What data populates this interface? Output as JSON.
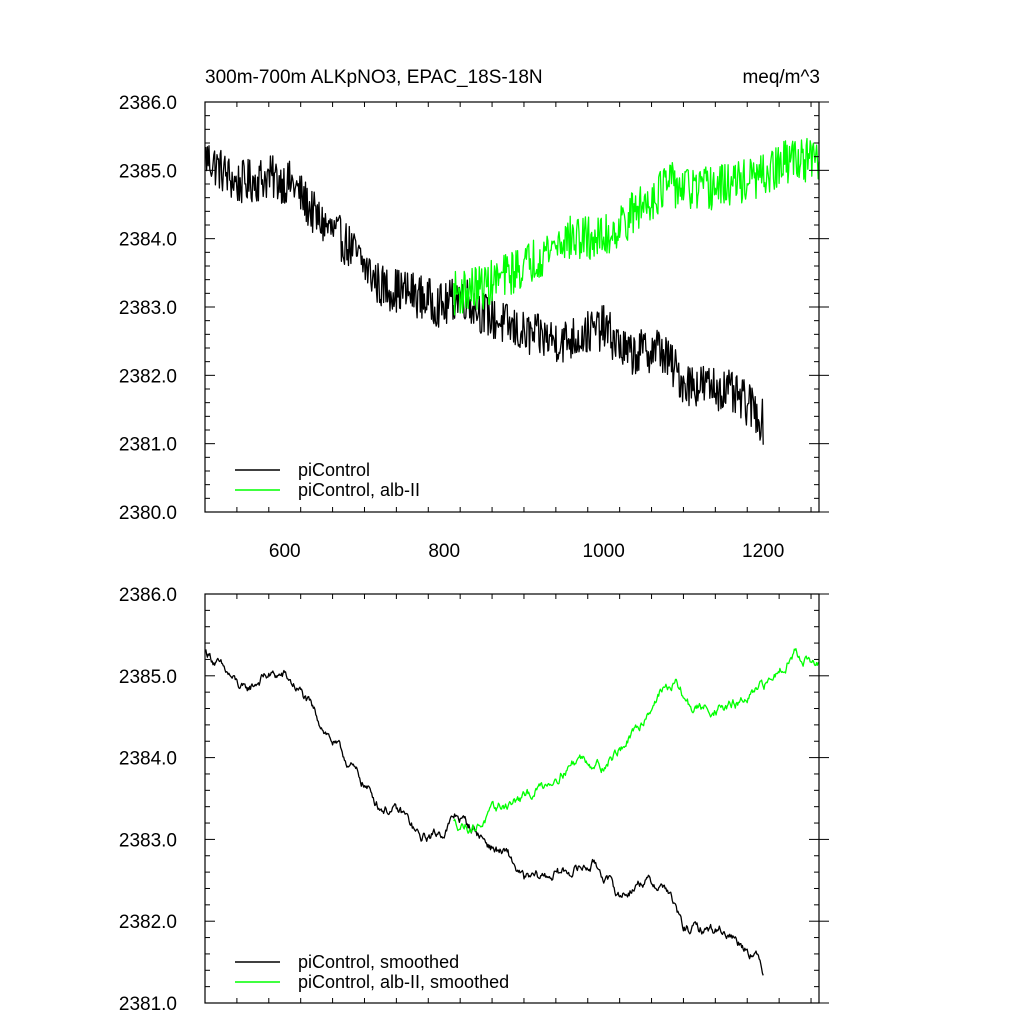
{
  "chart_data": [
    {
      "type": "line",
      "title": "300m-700m ALKpNO3, EPAC_18S-18N",
      "units": "meq/m^3",
      "xlim": [
        500,
        1270
      ],
      "ylim": [
        2380,
        2386
      ],
      "x_ticks": [
        600,
        800,
        1000,
        1200
      ],
      "y_ticks": [
        2380,
        2381,
        2382,
        2383,
        2384,
        2385,
        2386
      ],
      "y_tick_labels": [
        "2380.0",
        "2381.0",
        "2382.0",
        "2383.0",
        "2384.0",
        "2385.0",
        "2386.0"
      ],
      "x_tick_labels": [
        "600",
        "800",
        "1000",
        "1200"
      ],
      "legend": {
        "position": "bottom-left"
      },
      "series": [
        {
          "name": "piControl",
          "color": "#000000",
          "x_start": 501,
          "x_end": 1200,
          "noise": 0.33,
          "trend": [
            [
              501,
              2385.2
            ],
            [
              540,
              2384.8
            ],
            [
              580,
              2384.9
            ],
            [
              610,
              2384.8
            ],
            [
              640,
              2384.3
            ],
            [
              680,
              2383.9
            ],
            [
              720,
              2383.3
            ],
            [
              760,
              2383.2
            ],
            [
              800,
              2383.0
            ],
            [
              820,
              2383.2
            ],
            [
              850,
              2382.9
            ],
            [
              900,
              2382.6
            ],
            [
              950,
              2382.5
            ],
            [
              1000,
              2382.7
            ],
            [
              1030,
              2382.3
            ],
            [
              1070,
              2382.4
            ],
            [
              1100,
              2381.9
            ],
            [
              1150,
              2381.8
            ],
            [
              1190,
              2381.5
            ],
            [
              1200,
              2381.3
            ]
          ]
        },
        {
          "name": "piControl, alb-II",
          "color": "#00ff00",
          "x_start": 812,
          "x_end": 1270,
          "noise": 0.33,
          "trend": [
            [
              812,
              2383.2
            ],
            [
              850,
              2383.3
            ],
            [
              900,
              2383.6
            ],
            [
              950,
              2384.0
            ],
            [
              1000,
              2384.0
            ],
            [
              1050,
              2384.5
            ],
            [
              1080,
              2384.8
            ],
            [
              1120,
              2384.7
            ],
            [
              1160,
              2384.8
            ],
            [
              1200,
              2384.9
            ],
            [
              1240,
              2385.2
            ],
            [
              1270,
              2385.1
            ]
          ]
        }
      ]
    },
    {
      "type": "line",
      "xlim": [
        500,
        1270
      ],
      "ylim": [
        2381,
        2386
      ],
      "x_ticks": [
        600,
        800,
        1000,
        1200
      ],
      "y_ticks": [
        2381,
        2382,
        2383,
        2384,
        2385,
        2386
      ],
      "y_tick_labels": [
        "2381.0",
        "2382.0",
        "2383.0",
        "2384.0",
        "2385.0",
        "2386.0"
      ],
      "legend": {
        "position": "bottom-left"
      },
      "series": [
        {
          "name": "piControl, smoothed",
          "color": "#000000",
          "x_start": 501,
          "x_end": 1200,
          "noise": 0.09,
          "trend": [
            [
              501,
              2385.3
            ],
            [
              520,
              2385.1
            ],
            [
              550,
              2384.8
            ],
            [
              575,
              2385.0
            ],
            [
              600,
              2385.0
            ],
            [
              620,
              2384.8
            ],
            [
              640,
              2384.5
            ],
            [
              660,
              2384.2
            ],
            [
              690,
              2383.8
            ],
            [
              720,
              2383.4
            ],
            [
              750,
              2383.3
            ],
            [
              770,
              2383.0
            ],
            [
              800,
              2383.1
            ],
            [
              815,
              2383.3
            ],
            [
              840,
              2383.1
            ],
            [
              860,
              2382.9
            ],
            [
              880,
              2382.8
            ],
            [
              900,
              2382.5
            ],
            [
              950,
              2382.6
            ],
            [
              990,
              2382.7
            ],
            [
              1020,
              2382.3
            ],
            [
              1050,
              2382.5
            ],
            [
              1080,
              2382.4
            ],
            [
              1100,
              2381.9
            ],
            [
              1150,
              2381.9
            ],
            [
              1190,
              2381.6
            ],
            [
              1200,
              2381.4
            ]
          ]
        },
        {
          "name": "piControl, alb-II, smoothed",
          "color": "#00ff00",
          "x_start": 812,
          "x_end": 1270,
          "noise": 0.09,
          "trend": [
            [
              812,
              2383.2
            ],
            [
              840,
              2383.15
            ],
            [
              870,
              2383.4
            ],
            [
              900,
              2383.5
            ],
            [
              930,
              2383.7
            ],
            [
              970,
              2384.0
            ],
            [
              1000,
              2383.9
            ],
            [
              1040,
              2384.3
            ],
            [
              1070,
              2384.8
            ],
            [
              1090,
              2384.9
            ],
            [
              1110,
              2384.6
            ],
            [
              1150,
              2384.6
            ],
            [
              1180,
              2384.7
            ],
            [
              1200,
              2384.85
            ],
            [
              1240,
              2385.3
            ],
            [
              1270,
              2385.1
            ]
          ]
        }
      ]
    }
  ]
}
